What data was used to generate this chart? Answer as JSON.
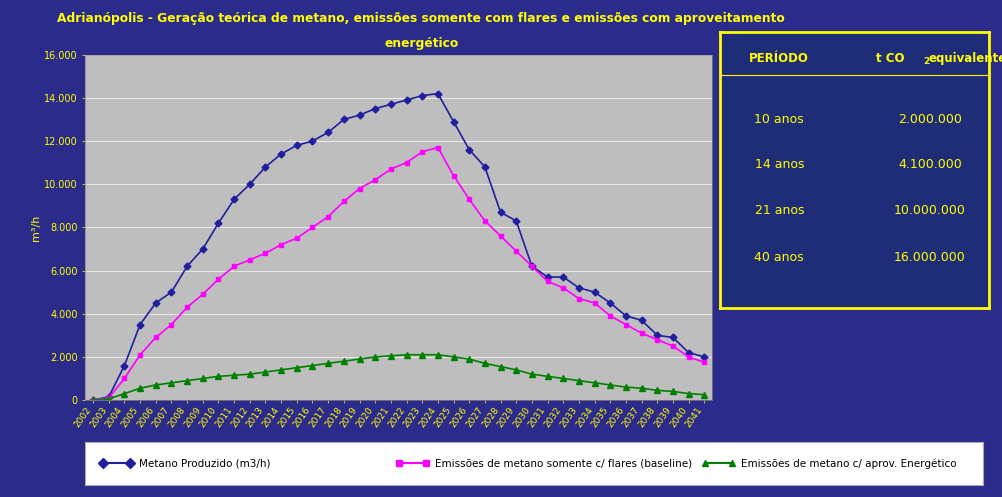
{
  "title_line1": "Adrianópolis - Geração teórica de metano, emissões somente com flares e emissões com aproveitamento",
  "title_line2": "energético",
  "title_color": "#FFFF00",
  "background_color": "#2B2B8C",
  "plot_bg_color": "#BEBEBE",
  "ylabel": "m³/h",
  "years": [
    2002,
    2003,
    2004,
    2005,
    2006,
    2007,
    2008,
    2009,
    2010,
    2011,
    2012,
    2013,
    2014,
    2015,
    2016,
    2017,
    2018,
    2019,
    2020,
    2021,
    2022,
    2023,
    2024,
    2025,
    2026,
    2027,
    2028,
    2029,
    2030,
    2031,
    2032,
    2033,
    2034,
    2035,
    2036,
    2037,
    2038,
    2039,
    2040,
    2041
  ],
  "metano_produzido": [
    0,
    150,
    1600,
    3500,
    4500,
    5000,
    6200,
    7000,
    8200,
    9300,
    10000,
    10800,
    11400,
    11800,
    12000,
    12400,
    13000,
    13200,
    13500,
    13700,
    13900,
    14100,
    14200,
    12900,
    11600,
    10800,
    8700,
    8300,
    6200,
    5700,
    5700,
    5200,
    5000,
    4500,
    3900,
    3700,
    3000,
    2900,
    2200,
    2000
  ],
  "emissoes_flares": [
    0,
    100,
    1000,
    2100,
    2900,
    3500,
    4300,
    4900,
    5600,
    6200,
    6500,
    6800,
    7200,
    7500,
    8000,
    8500,
    9200,
    9800,
    10200,
    10700,
    11000,
    11500,
    11700,
    10400,
    9300,
    8300,
    7600,
    6900,
    6200,
    5500,
    5200,
    4700,
    4500,
    3900,
    3500,
    3100,
    2800,
    2500,
    2000,
    1750
  ],
  "emissoes_energetico": [
    0,
    50,
    300,
    550,
    700,
    800,
    900,
    1000,
    1100,
    1150,
    1200,
    1300,
    1400,
    1500,
    1600,
    1700,
    1800,
    1900,
    2000,
    2050,
    2100,
    2100,
    2100,
    2000,
    1900,
    1700,
    1550,
    1400,
    1200,
    1100,
    1000,
    900,
    800,
    700,
    600,
    550,
    450,
    400,
    300,
    250
  ],
  "line1_color": "#1F1F9F",
  "line2_color": "#FF00FF",
  "line3_color": "#008000",
  "ylim": [
    0,
    16000
  ],
  "yticks": [
    0,
    2000,
    4000,
    6000,
    8000,
    10000,
    12000,
    14000,
    16000
  ],
  "ytick_labels": [
    "0",
    "2.000",
    "4.000",
    "6.000",
    "8.000",
    "10.000",
    "12.000",
    "14.000",
    "16.000"
  ],
  "table_bg": "#1F2C78",
  "table_border_color": "#FFFF00",
  "table_rows": [
    [
      "10 anos",
      "2.000.000"
    ],
    [
      "14 anos",
      "4.100.000"
    ],
    [
      "21 anos",
      "10.000.000"
    ],
    [
      "40 anos",
      "16.000.000"
    ]
  ],
  "legend_labels": [
    "Metano Produzido (m3/h)",
    "Emissões de metano somente c/ flares (baseline)",
    "Emissões de metano c/ aprov. Energético"
  ],
  "legend_bg": "#FFFFFF",
  "legend_border_color": "#888888"
}
